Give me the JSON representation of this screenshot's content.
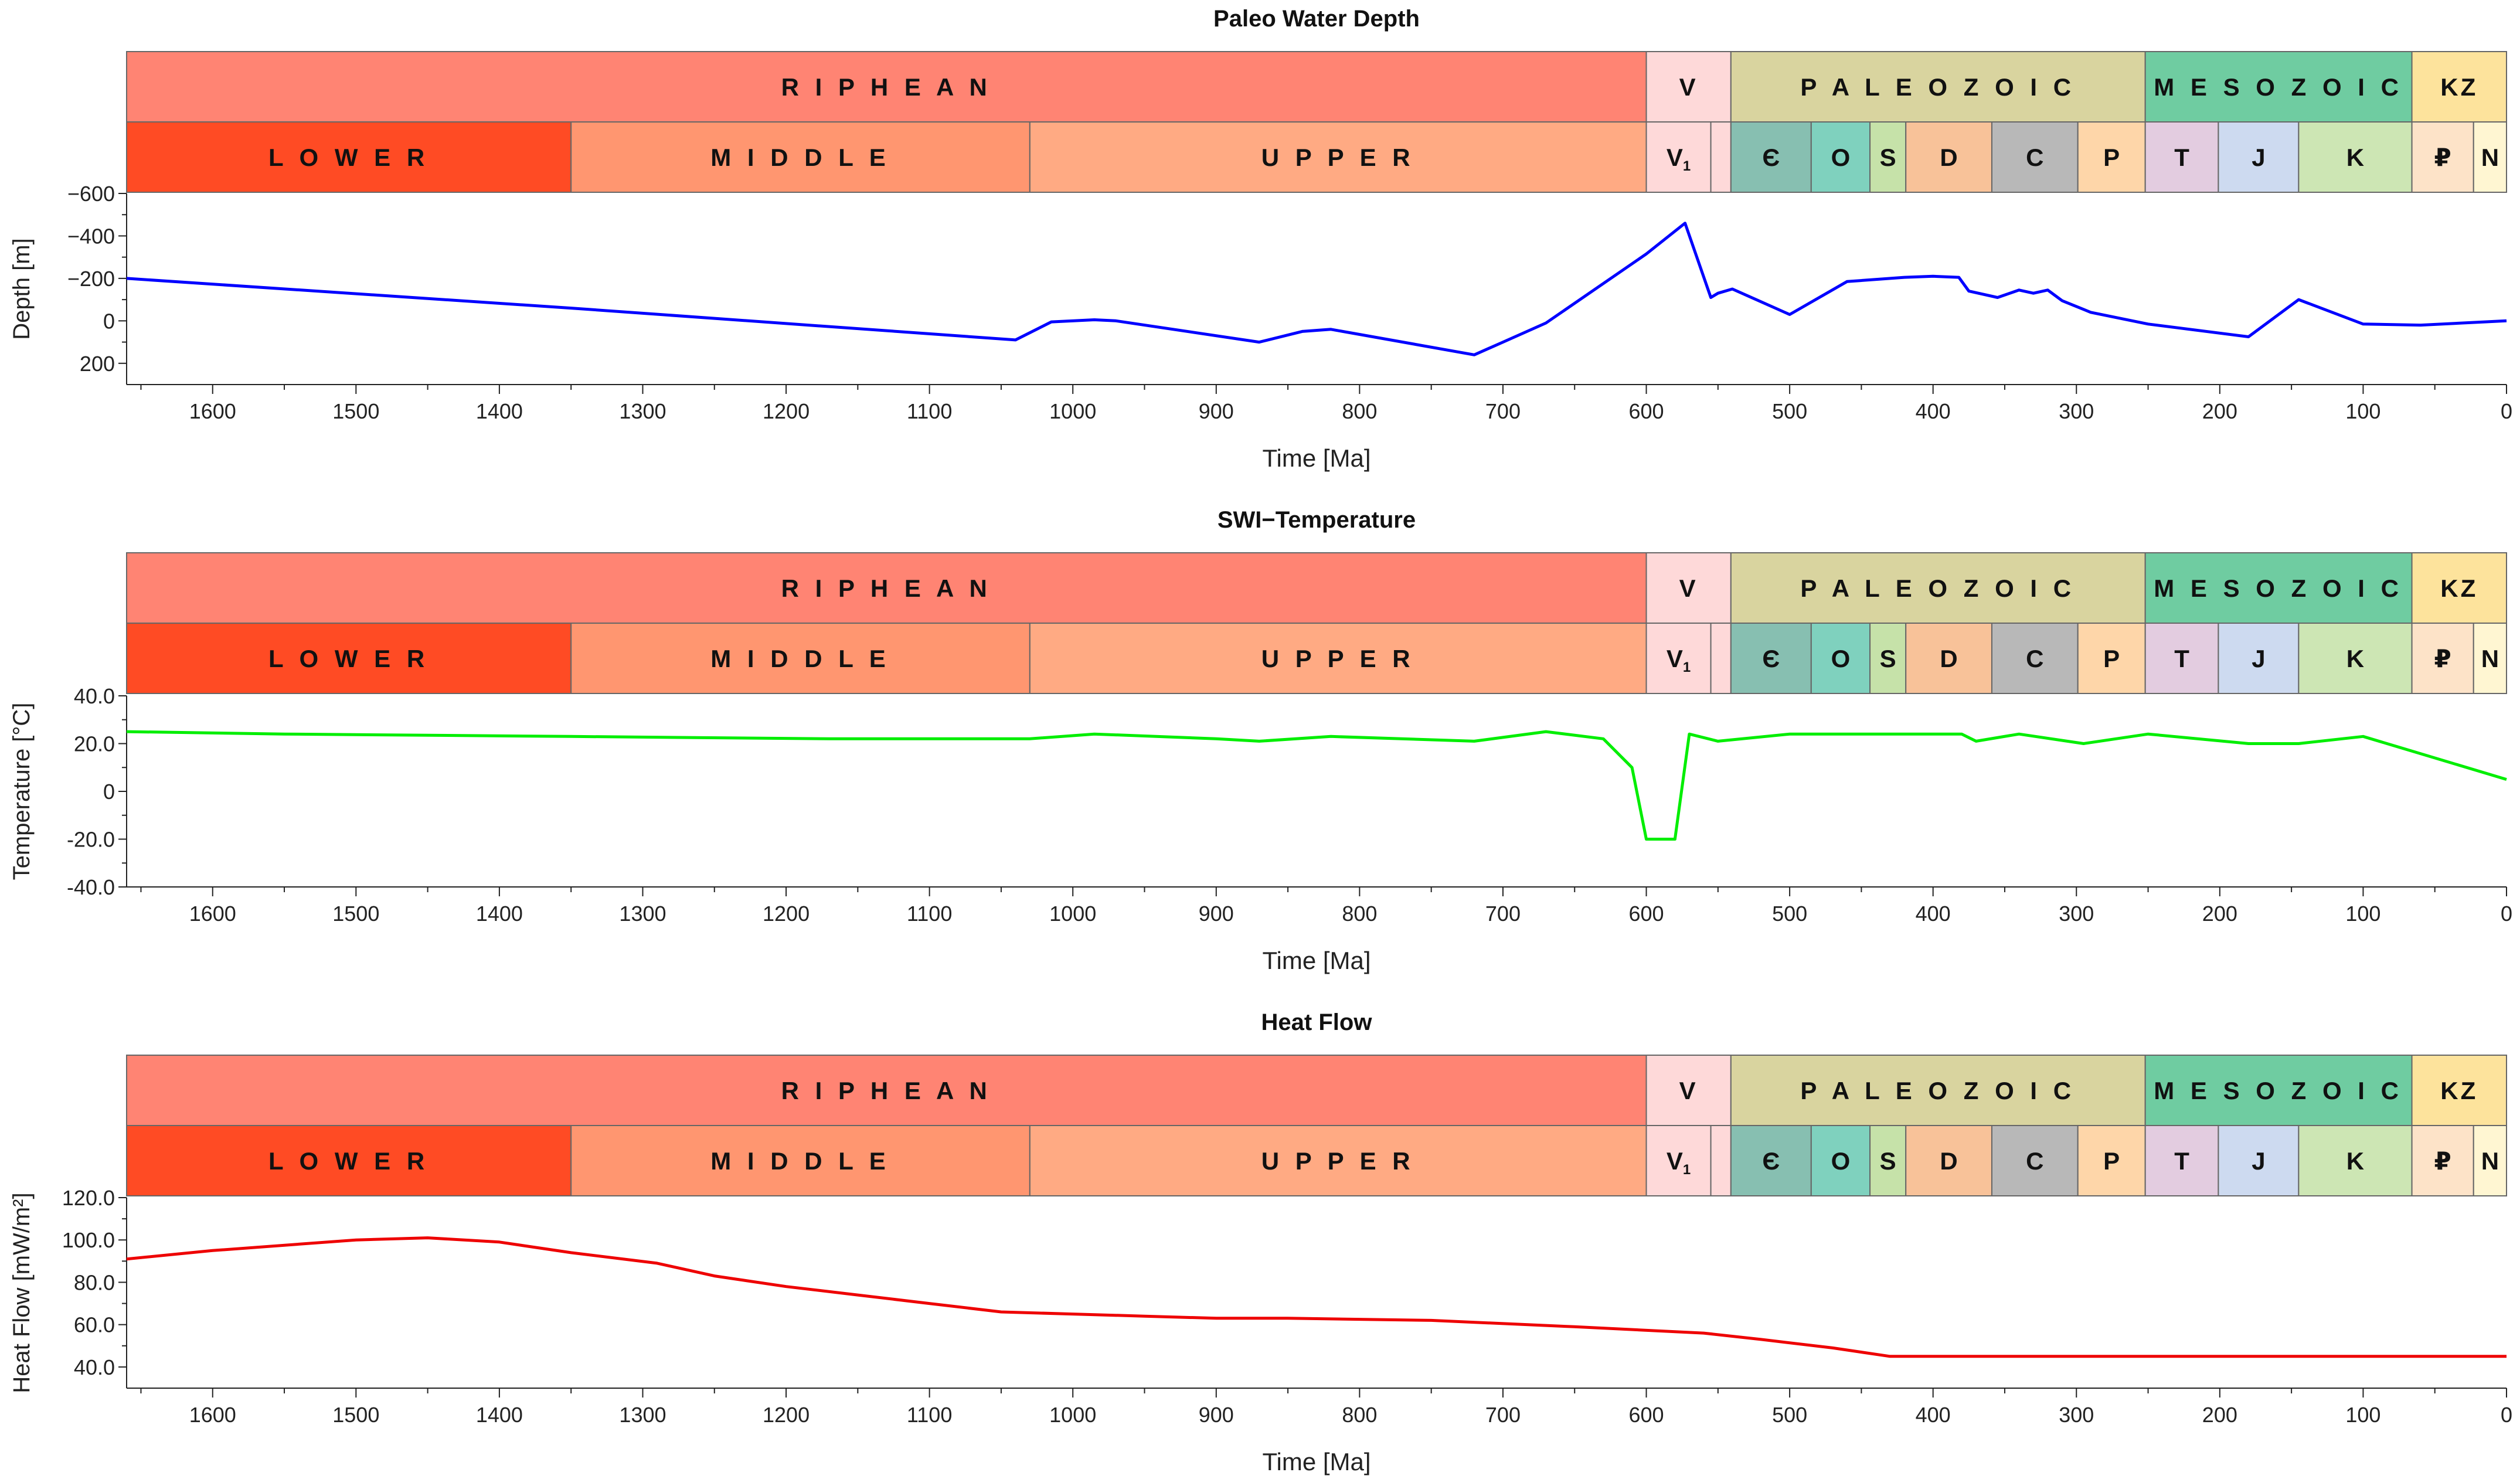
{
  "eras": [
    {
      "label": "R I P H E A N",
      "from": 1660,
      "to": 600,
      "color": "#ff8473"
    },
    {
      "label": "V",
      "from": 600,
      "to": 541,
      "color": "#fed9d9"
    },
    {
      "label": "P A L E O Z O I C",
      "from": 541,
      "to": 252,
      "color": "#d9d49f"
    },
    {
      "label": "M E S O Z O I C",
      "from": 252,
      "to": 66,
      "color": "#6fcca1"
    },
    {
      "label": "KZ",
      "from": 66,
      "to": 0,
      "color": "#fde39c"
    }
  ],
  "periods": [
    {
      "label": "L O W E R",
      "from": 1660,
      "to": 1350,
      "color": "#ff4b24"
    },
    {
      "label": "M I D D L E",
      "from": 1350,
      "to": 1030,
      "color": "#ff9670"
    },
    {
      "label": "U P P E R",
      "from": 1030,
      "to": 600,
      "color": "#ffaa83"
    },
    {
      "label": "V",
      "sub": "1",
      "from": 600,
      "to": 555,
      "color": "#fed9d9"
    },
    {
      "label": "",
      "from": 555,
      "to": 541,
      "color": "#fed9d9"
    },
    {
      "label": "Є",
      "from": 541,
      "to": 485,
      "color": "#87bfb1"
    },
    {
      "label": "O",
      "from": 485,
      "to": 444,
      "color": "#7fd1be"
    },
    {
      "label": "S",
      "from": 444,
      "to": 419,
      "color": "#c6e2a9"
    },
    {
      "label": "D",
      "from": 419,
      "to": 359,
      "color": "#f8c299"
    },
    {
      "label": "C",
      "from": 359,
      "to": 299,
      "color": "#b8b8b8"
    },
    {
      "label": "P",
      "from": 299,
      "to": 252,
      "color": "#fed6a9"
    },
    {
      "label": "T",
      "from": 252,
      "to": 201,
      "color": "#e3cce0"
    },
    {
      "label": "J",
      "from": 201,
      "to": 145,
      "color": "#cddaf0"
    },
    {
      "label": "K",
      "from": 145,
      "to": 66,
      "color": "#cde6b4"
    },
    {
      "label": "₽",
      "from": 66,
      "to": 23,
      "color": "#fde3c8"
    },
    {
      "label": "N",
      "from": 23,
      "to": 0,
      "color": "#fff6d2"
    }
  ],
  "xticks": [
    1600,
    1500,
    1400,
    1300,
    1200,
    1100,
    1000,
    900,
    800,
    700,
    600,
    500,
    400,
    300,
    200,
    100,
    0
  ],
  "xlabel": "Time [Ma]",
  "chart_data": [
    {
      "type": "line",
      "title": "Paleo Water Depth",
      "xlabel": "Time [Ma]",
      "ylabel": "Depth [m]",
      "xlim": [
        1660,
        0
      ],
      "ylim": [
        -600,
        300
      ],
      "inverted_y": true,
      "yticks": [
        -600,
        -400,
        -200,
        0,
        200
      ],
      "ytick_labels": [
        "−600",
        "−400",
        "−200",
        "0",
        "200"
      ],
      "color": "#0000ff",
      "x": [
        1660,
        1350,
        1040,
        1015,
        985,
        970,
        870,
        840,
        820,
        720,
        700,
        670,
        600,
        573,
        555,
        550,
        540,
        500,
        460,
        420,
        400,
        382,
        375,
        355,
        340,
        330,
        320,
        310,
        290,
        250,
        180,
        145,
        100,
        60,
        0
      ],
      "y": [
        -200,
        -60,
        90,
        5,
        -5,
        0,
        100,
        50,
        40,
        160,
        100,
        10,
        -315,
        -460,
        -110,
        -130,
        -150,
        -30,
        -185,
        -205,
        -210,
        -205,
        -140,
        -110,
        -145,
        -130,
        -145,
        -95,
        -40,
        15,
        75,
        -100,
        15,
        20,
        0
      ]
    },
    {
      "type": "line",
      "title": "SWI−Temperature",
      "xlabel": "Time [Ma]",
      "ylabel": "Temperature [°C]",
      "xlim": [
        1660,
        0
      ],
      "ylim": [
        -40,
        40
      ],
      "yticks": [
        -40,
        -20,
        0,
        20,
        40
      ],
      "ytick_labels": [
        "-40.0",
        "-20.0",
        "0",
        "20.0",
        "40.0"
      ],
      "color": "#00ee00",
      "x": [
        1660,
        1550,
        1350,
        1170,
        1030,
        985,
        900,
        870,
        820,
        720,
        670,
        630,
        610,
        600,
        590,
        580,
        570,
        550,
        500,
        380,
        370,
        340,
        295,
        250,
        180,
        145,
        100,
        0
      ],
      "y": [
        25,
        24,
        23,
        22,
        22,
        24,
        22,
        21,
        23,
        21,
        25,
        22,
        10,
        -20,
        -20,
        -20,
        24,
        21,
        24,
        24,
        21,
        24,
        20,
        24,
        20,
        20,
        23,
        5
      ]
    },
    {
      "type": "line",
      "title": "Heat Flow",
      "xlabel": "Time [Ma]",
      "ylabel": "Heat Flow [mW/m²]",
      "xlim": [
        1660,
        0
      ],
      "ylim": [
        30,
        120
      ],
      "yticks": [
        40,
        60,
        80,
        100,
        120
      ],
      "ytick_labels": [
        "40.0",
        "60.0",
        "80.0",
        "100.0",
        "120.0"
      ],
      "color": "#ee0000",
      "x": [
        1660,
        1600,
        1500,
        1450,
        1400,
        1350,
        1290,
        1250,
        1200,
        1150,
        1100,
        1050,
        1000,
        950,
        900,
        850,
        750,
        650,
        560,
        520,
        470,
        430,
        300,
        200,
        100,
        0
      ],
      "y": [
        91,
        95,
        100,
        101,
        99,
        94,
        89,
        83,
        78,
        74,
        70,
        66,
        65,
        64,
        63,
        63,
        62,
        59,
        56,
        53,
        49,
        45,
        45,
        45,
        45,
        45
      ]
    }
  ]
}
